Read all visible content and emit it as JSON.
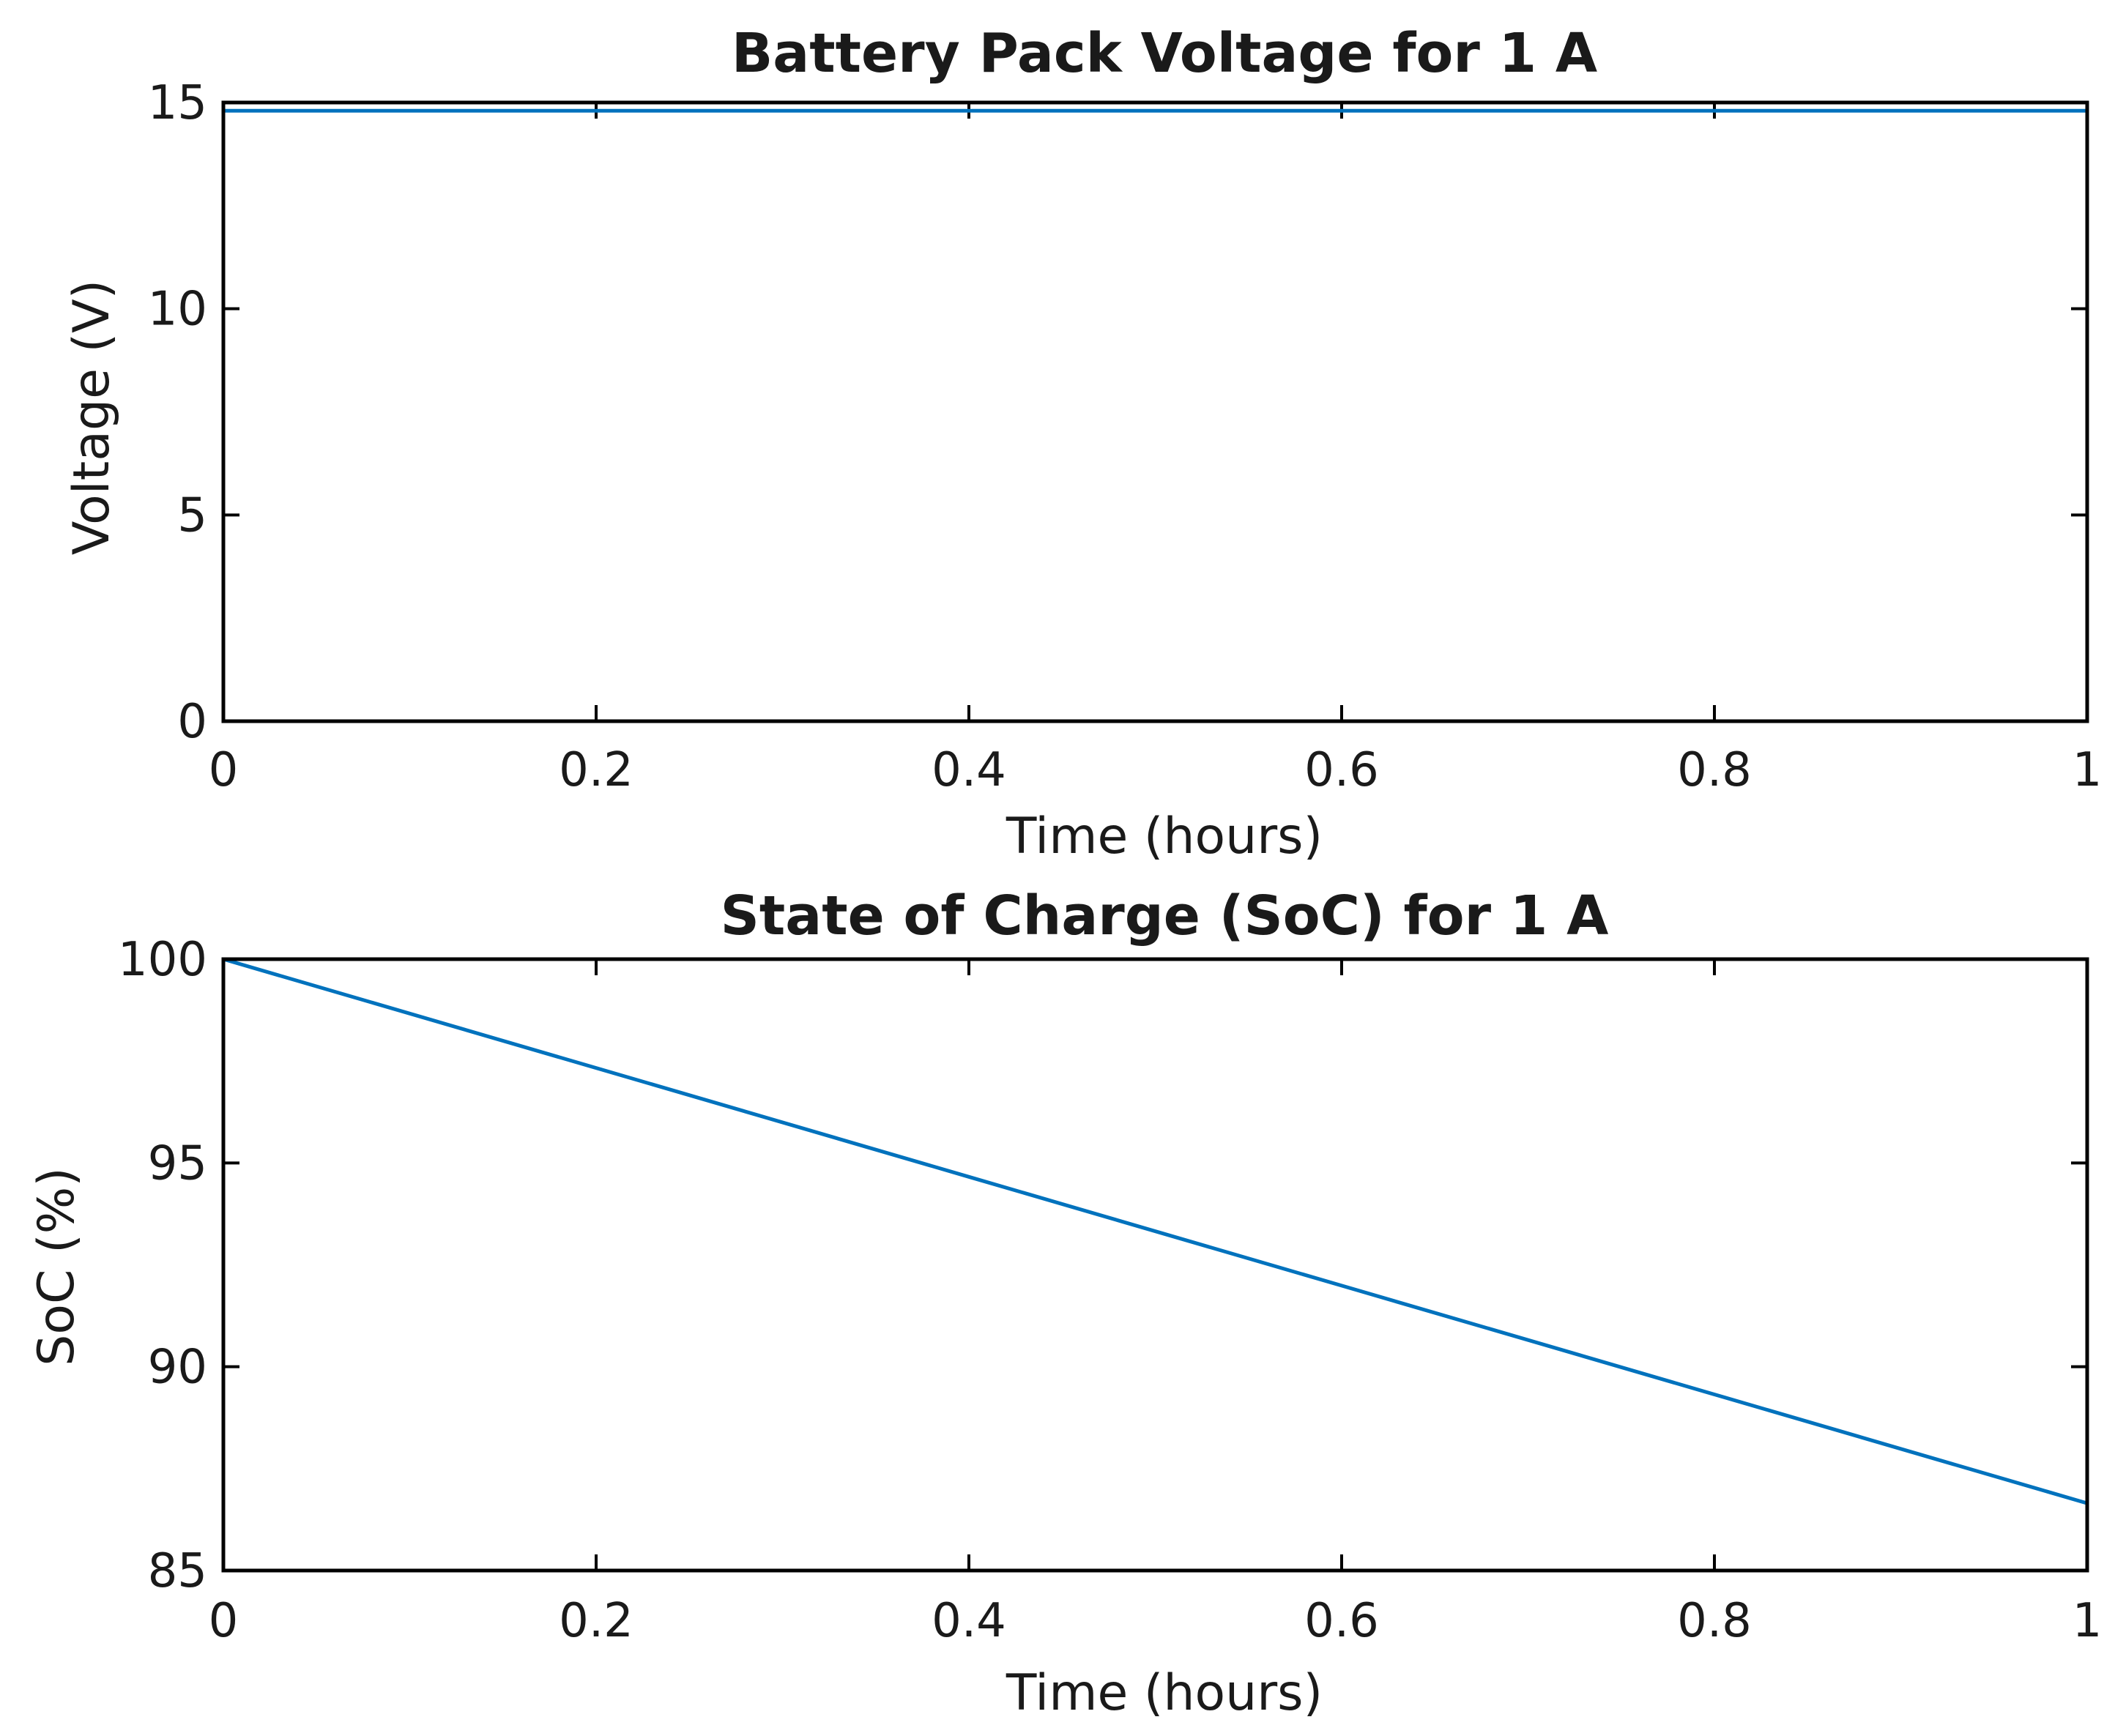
{
  "chart_data": [
    {
      "type": "line",
      "title": "Battery Pack Voltage for 1 A",
      "xlabel": "Time (hours)",
      "ylabel": "Voltage (V)",
      "xlim": [
        0,
        1
      ],
      "ylim": [
        0,
        15
      ],
      "xticks": [
        "0",
        "0.2",
        "0.4",
        "0.6",
        "0.8",
        "1"
      ],
      "xtick_values": [
        0,
        0.2,
        0.4,
        0.6,
        0.8,
        1
      ],
      "yticks": [
        "0",
        "5",
        "10",
        "15"
      ],
      "ytick_values": [
        0,
        5,
        10,
        15
      ],
      "grid": false,
      "color": "#0072BD",
      "x": [
        0,
        0,
        0.2,
        0.4,
        0.6,
        0.8,
        1
      ],
      "y": [
        0,
        14.8,
        14.8,
        14.8,
        14.8,
        14.8,
        14.8
      ]
    },
    {
      "type": "line",
      "title": "State of Charge (SoC) for 1 A",
      "xlabel": "Time (hours)",
      "ylabel": "SoC (%)",
      "xlim": [
        0,
        1
      ],
      "ylim": [
        85,
        100
      ],
      "xticks": [
        "0",
        "0.2",
        "0.4",
        "0.6",
        "0.8",
        "1"
      ],
      "xtick_values": [
        0,
        0.2,
        0.4,
        0.6,
        0.8,
        1
      ],
      "yticks": [
        "85",
        "90",
        "95",
        "100"
      ],
      "ytick_values": [
        85,
        90,
        95,
        100
      ],
      "grid": false,
      "color": "#0072BD",
      "x": [
        0,
        0.2,
        0.4,
        0.6,
        0.8,
        1
      ],
      "y": [
        100,
        97.33,
        94.66,
        91.99,
        89.32,
        86.65
      ]
    }
  ]
}
